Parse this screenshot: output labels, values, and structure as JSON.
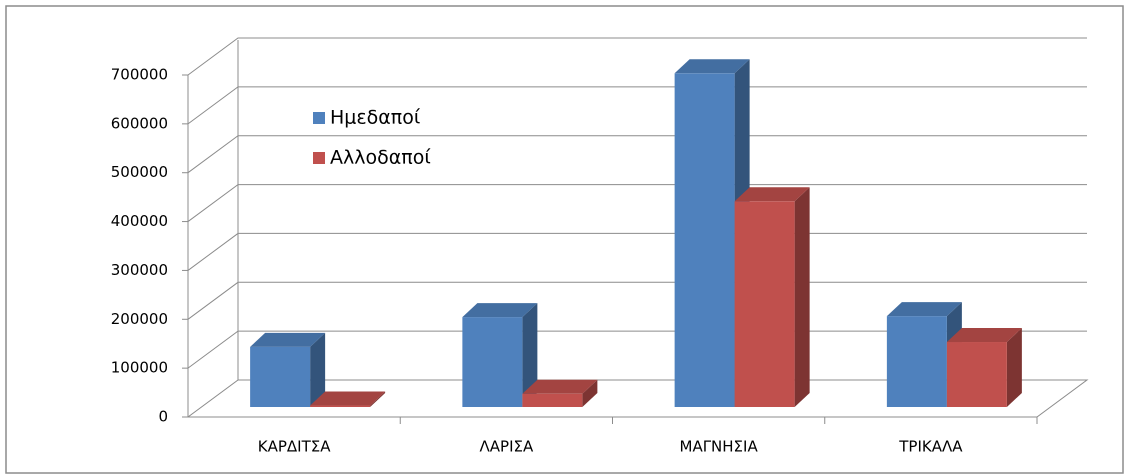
{
  "chart_data": {
    "type": "bar3d",
    "categories": [
      "ΚΑΡΔΙΤΣΑ",
      "ΛΑΡΙΣΑ",
      "ΜΑΓΝΗΣΙΑ",
      "ΤΡΙΚΑΛΑ"
    ],
    "series": [
      {
        "name": "Ημεδαποί",
        "color": "#4f81bd",
        "values": [
          123000,
          184000,
          683000,
          186000
        ]
      },
      {
        "name": "Αλλοδαποί",
        "color": "#c0504d",
        "values": [
          3000,
          27000,
          421000,
          133000
        ]
      }
    ],
    "ylim": [
      0,
      700000
    ],
    "yticks": [
      0,
      100000,
      200000,
      300000,
      400000,
      500000,
      600000,
      700000
    ],
    "grid": true,
    "legend": "upper-left"
  }
}
